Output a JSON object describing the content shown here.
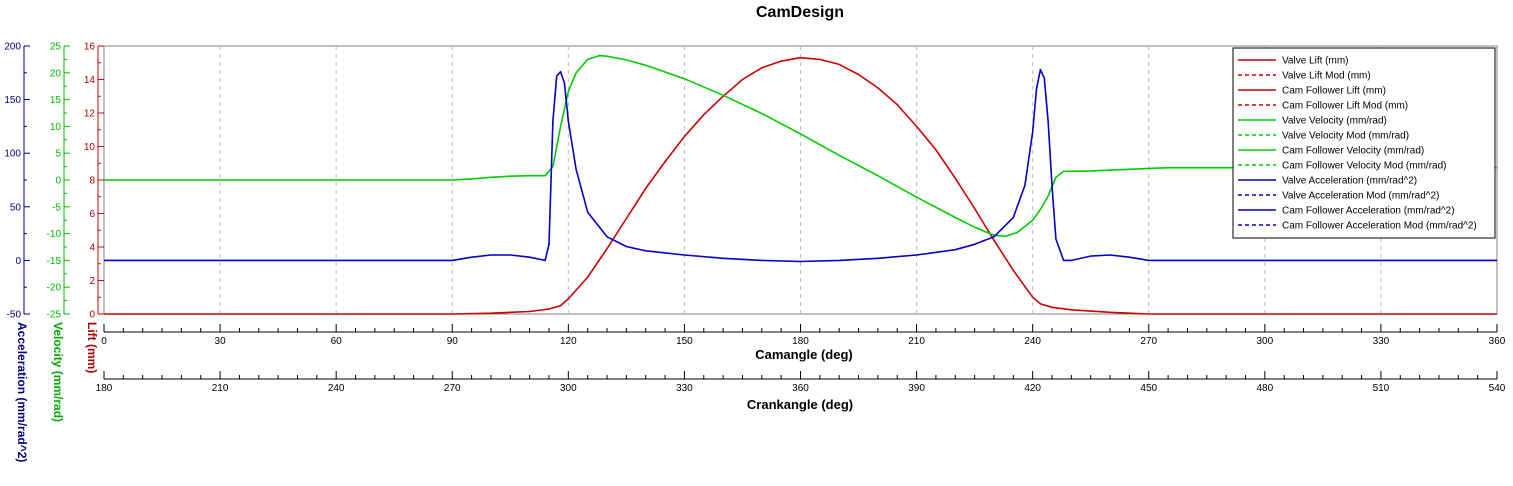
{
  "chart_data": {
    "type": "line",
    "title": "CamDesign",
    "x_axes": {
      "primary": {
        "label": "Camangle (deg)",
        "range": [
          0,
          360
        ],
        "ticks": [
          0,
          30,
          60,
          90,
          120,
          150,
          180,
          210,
          240,
          270,
          300,
          330,
          360
        ]
      },
      "secondary": {
        "label": "Crankangle (deg)",
        "range": [
          180,
          540
        ],
        "ticks": [
          180,
          210,
          240,
          270,
          300,
          330,
          360,
          390,
          420,
          450,
          480,
          510,
          540
        ]
      }
    },
    "y_axes": {
      "lift": {
        "label": "Lift (mm)",
        "range": [
          0,
          16
        ],
        "ticks": [
          0,
          2,
          4,
          6,
          8,
          10,
          12,
          14,
          16
        ],
        "color": "#cc0000"
      },
      "velocity": {
        "label": "Velocity (mm/rad)",
        "range": [
          -25,
          25
        ],
        "ticks": [
          -25,
          -20,
          -15,
          -10,
          -5,
          0,
          5,
          10,
          15,
          20,
          25
        ],
        "color": "#00bb00"
      },
      "acceleration": {
        "label": "Acceleration (mm/rad^2)",
        "range": [
          -50,
          200
        ],
        "ticks": [
          -50,
          0,
          50,
          100,
          150,
          200
        ],
        "color": "#000080"
      }
    },
    "grid": "vertical dashed",
    "legend_position": "top-right",
    "legend": [
      {
        "name": "Valve Lift (mm)",
        "color": "#cc0000",
        "dash": "solid"
      },
      {
        "name": "Valve Lift Mod (mm)",
        "color": "#cc0000",
        "dash": "dashed"
      },
      {
        "name": "Cam Follower Lift (mm)",
        "color": "#cc0000",
        "dash": "solid"
      },
      {
        "name": "Cam Follower Lift Mod (mm)",
        "color": "#cc0000",
        "dash": "dashed"
      },
      {
        "name": "Valve Velocity (mm/rad)",
        "color": "#00cc00",
        "dash": "solid"
      },
      {
        "name": "Valve Velocity Mod (mm/rad)",
        "color": "#00cc00",
        "dash": "dashed"
      },
      {
        "name": "Cam Follower Velocity (mm/rad)",
        "color": "#00cc00",
        "dash": "solid"
      },
      {
        "name": "Cam Follower Velocity Mod (mm/rad)",
        "color": "#00cc00",
        "dash": "dashed"
      },
      {
        "name": "Valve Acceleration (mm/rad^2)",
        "color": "#0000bb",
        "dash": "solid"
      },
      {
        "name": "Valve Acceleration Mod (mm/rad^2)",
        "color": "#0000bb",
        "dash": "dashed"
      },
      {
        "name": "Cam Follower Acceleration (mm/rad^2)",
        "color": "#0000bb",
        "dash": "solid"
      },
      {
        "name": "Cam Follower Acceleration Mod (mm/rad^2)",
        "color": "#0000bb",
        "dash": "dashed"
      }
    ],
    "series": [
      {
        "name": "Valve Lift (mm)",
        "axis": "lift",
        "color": "#cc0000",
        "x": [
          0,
          90,
          100,
          110,
          115,
          118,
          120,
          125,
          130,
          135,
          140,
          145,
          150,
          155,
          160,
          165,
          170,
          175,
          180,
          185,
          190,
          195,
          200,
          205,
          210,
          215,
          220,
          225,
          230,
          235,
          240,
          242,
          245,
          250,
          260,
          270,
          360
        ],
        "y": [
          0,
          0,
          0.05,
          0.15,
          0.3,
          0.5,
          0.9,
          2.2,
          3.9,
          5.7,
          7.5,
          9.1,
          10.6,
          11.9,
          13.0,
          14.0,
          14.7,
          15.1,
          15.3,
          15.2,
          14.9,
          14.3,
          13.5,
          12.5,
          11.2,
          9.8,
          8.1,
          6.3,
          4.4,
          2.6,
          1.0,
          0.6,
          0.4,
          0.25,
          0.1,
          0,
          0
        ]
      },
      {
        "name": "Valve Velocity (mm/rad)",
        "axis": "velocity",
        "color": "#00cc00",
        "x": [
          0,
          90,
          95,
          100,
          105,
          110,
          114,
          116,
          118,
          120,
          122,
          125,
          128,
          130,
          135,
          140,
          150,
          160,
          170,
          180,
          190,
          200,
          210,
          220,
          225,
          230,
          233,
          236,
          240,
          242,
          244,
          246,
          248,
          255,
          265,
          275,
          360
        ],
        "y": [
          0,
          0,
          0.2,
          0.5,
          0.7,
          0.8,
          0.8,
          2.5,
          10,
          16.5,
          20,
          22.5,
          23.2,
          23.1,
          22.4,
          21.4,
          18.9,
          15.8,
          12.4,
          8.6,
          4.6,
          0.8,
          -3.2,
          -7.0,
          -8.8,
          -10.3,
          -10.5,
          -9.8,
          -7.5,
          -5.5,
          -3.0,
          0.5,
          1.6,
          1.7,
          2.0,
          2.3,
          2.3
        ]
      },
      {
        "name": "Valve Acceleration (mm/rad^2)",
        "axis": "acceleration",
        "color": "#0000cc",
        "x": [
          0,
          90,
          95,
          100,
          105,
          110,
          114,
          115,
          116,
          117,
          118,
          119,
          120,
          122,
          125,
          130,
          135,
          140,
          150,
          160,
          170,
          180,
          190,
          200,
          210,
          220,
          225,
          230,
          235,
          238,
          240,
          241,
          242,
          243,
          244,
          245,
          246,
          248,
          250,
          255,
          260,
          265,
          270,
          360
        ],
        "y": [
          0,
          0,
          3,
          5,
          5,
          3,
          0,
          15,
          130,
          172,
          176,
          165,
          130,
          85,
          45,
          22,
          13,
          9,
          5,
          2,
          0,
          -1,
          0,
          2,
          5,
          10,
          15,
          22,
          40,
          70,
          120,
          160,
          178,
          170,
          130,
          70,
          20,
          0,
          0,
          4,
          5,
          3,
          0,
          0
        ]
      }
    ]
  }
}
